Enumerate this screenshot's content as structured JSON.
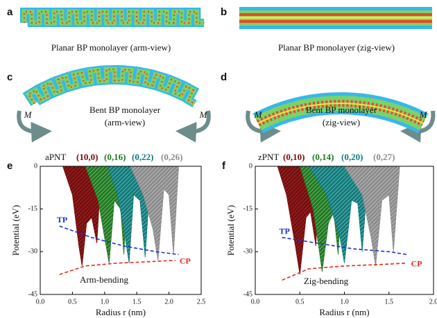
{
  "panels": [
    {
      "label": "a",
      "caption": [
        "Planar BP  monolayer (arm-view)"
      ]
    },
    {
      "label": "b",
      "caption": [
        "Planar BP monolayer (zig-view)"
      ]
    },
    {
      "label": "c",
      "caption": [
        "Bent BP monolayer",
        "(arm-view)"
      ],
      "moment": [
        "M",
        "M"
      ]
    },
    {
      "label": "d",
      "caption": [
        "Bent BP monolayer",
        "(zig-view)"
      ],
      "moment": [
        "M",
        "M"
      ]
    }
  ],
  "chart_data": [
    {
      "type": "area",
      "label": "e",
      "title": "aPNT",
      "annotation": "Arm-bending",
      "xlabel": "Radius r (nm)",
      "ylabel": "Potential (eV)",
      "xlim": [
        0,
        2.5
      ],
      "ylim": [
        -45,
        0
      ],
      "xticks": [
        {
          "value": 0,
          "label": "0.0"
        },
        0.5,
        {
          "value": 1,
          "label": "1.0"
        },
        1.5,
        {
          "value": 2,
          "label": "2.0"
        },
        2.5
      ],
      "yticks": [
        0,
        -15,
        -30,
        -45
      ],
      "series": [
        {
          "name": "(10,0)",
          "color": "#7a0c0c",
          "x": [
            0.35,
            0.5,
            0.6,
            0.65,
            0.72,
            0.8,
            0.88,
            0.95
          ],
          "values": [
            0,
            -10,
            -28,
            -35,
            -20,
            -18,
            -27,
            0
          ]
        },
        {
          "name": "(0,16)",
          "color": "#1f7a1f",
          "x": [
            0.7,
            0.9,
            1.0,
            1.07,
            1.15,
            1.25,
            1.3,
            1.37
          ],
          "values": [
            0,
            -12,
            -25,
            -34,
            -12,
            -15,
            -31,
            0
          ]
        },
        {
          "name": "(0,22)",
          "color": "#0f7b7b",
          "x": [
            1.05,
            1.2,
            1.3,
            1.38,
            1.45,
            1.55,
            1.63,
            1.72
          ],
          "values": [
            0,
            -10,
            -22,
            -34,
            -10,
            -12,
            -32,
            0
          ]
        },
        {
          "name": "(0,26)",
          "color": "#8c8c8c",
          "x": [
            1.4,
            1.6,
            1.75,
            1.83,
            1.92,
            2.0,
            2.07,
            2.15
          ],
          "values": [
            0,
            -10,
            -22,
            -33,
            -8,
            -10,
            -31,
            0
          ]
        },
        {
          "name": "TP",
          "type": "line",
          "color": "#1a2fd6",
          "x": [
            0.3,
            0.8,
            1.3,
            1.8,
            2.15
          ],
          "values": [
            -21,
            -25,
            -28,
            -30,
            -31
          ]
        },
        {
          "name": "CP",
          "type": "line",
          "color": "#e5281c",
          "x": [
            0.3,
            0.7,
            1.2,
            1.7,
            2.1
          ],
          "values": [
            -38,
            -35,
            -34,
            -33.5,
            -33
          ]
        }
      ]
    },
    {
      "type": "area",
      "label": "f",
      "title": "zPNT",
      "annotation": "Zig-bending",
      "xlabel": "Radius r (nm)",
      "ylabel": "Potential (eV)",
      "xlim": [
        0,
        2
      ],
      "ylim": [
        -45,
        0
      ],
      "xticks": [
        {
          "value": 0,
          "label": "0.0"
        },
        0.5,
        {
          "value": 1,
          "label": "1.0"
        },
        1.5,
        {
          "value": 2,
          "label": "2.0"
        }
      ],
      "yticks": [
        0,
        -15,
        -30,
        -45
      ],
      "series": [
        {
          "name": "(0,10)",
          "color": "#7a0c0c",
          "x": [
            0.25,
            0.35,
            0.45,
            0.5,
            0.57,
            0.62,
            0.68,
            0.72
          ],
          "values": [
            0,
            -10,
            -28,
            -38,
            -18,
            -16,
            -28,
            0
          ]
        },
        {
          "name": "(0,14)",
          "color": "#1f7a1f",
          "x": [
            0.5,
            0.65,
            0.72,
            0.75,
            0.82,
            0.88,
            0.93,
            0.98
          ],
          "values": [
            0,
            -15,
            -30,
            -37,
            -20,
            -16,
            -31,
            0
          ]
        },
        {
          "name": "(0,20)",
          "color": "#0f7b7b",
          "x": [
            0.6,
            0.8,
            0.95,
            1.0,
            1.08,
            1.15,
            1.2,
            1.27
          ],
          "values": [
            0,
            -10,
            -25,
            -34,
            -12,
            -13,
            -30,
            0
          ]
        },
        {
          "name": "(0,27)",
          "color": "#8c8c8c",
          "x": [
            1.0,
            1.2,
            1.3,
            1.35,
            1.42,
            1.5,
            1.55,
            1.62
          ],
          "values": [
            0,
            -10,
            -25,
            -35,
            -12,
            -10,
            -30,
            0
          ]
        },
        {
          "name": "TP",
          "type": "line",
          "color": "#1a2fd6",
          "x": [
            0.3,
            0.7,
            1.1,
            1.5,
            1.7
          ],
          "values": [
            -25,
            -27,
            -29,
            -30,
            -31
          ]
        },
        {
          "name": "CP",
          "type": "line",
          "color": "#e5281c",
          "x": [
            0.3,
            0.6,
            1.0,
            1.4,
            1.7
          ],
          "values": [
            -40,
            -36,
            -35,
            -34.5,
            -34
          ]
        }
      ]
    }
  ]
}
